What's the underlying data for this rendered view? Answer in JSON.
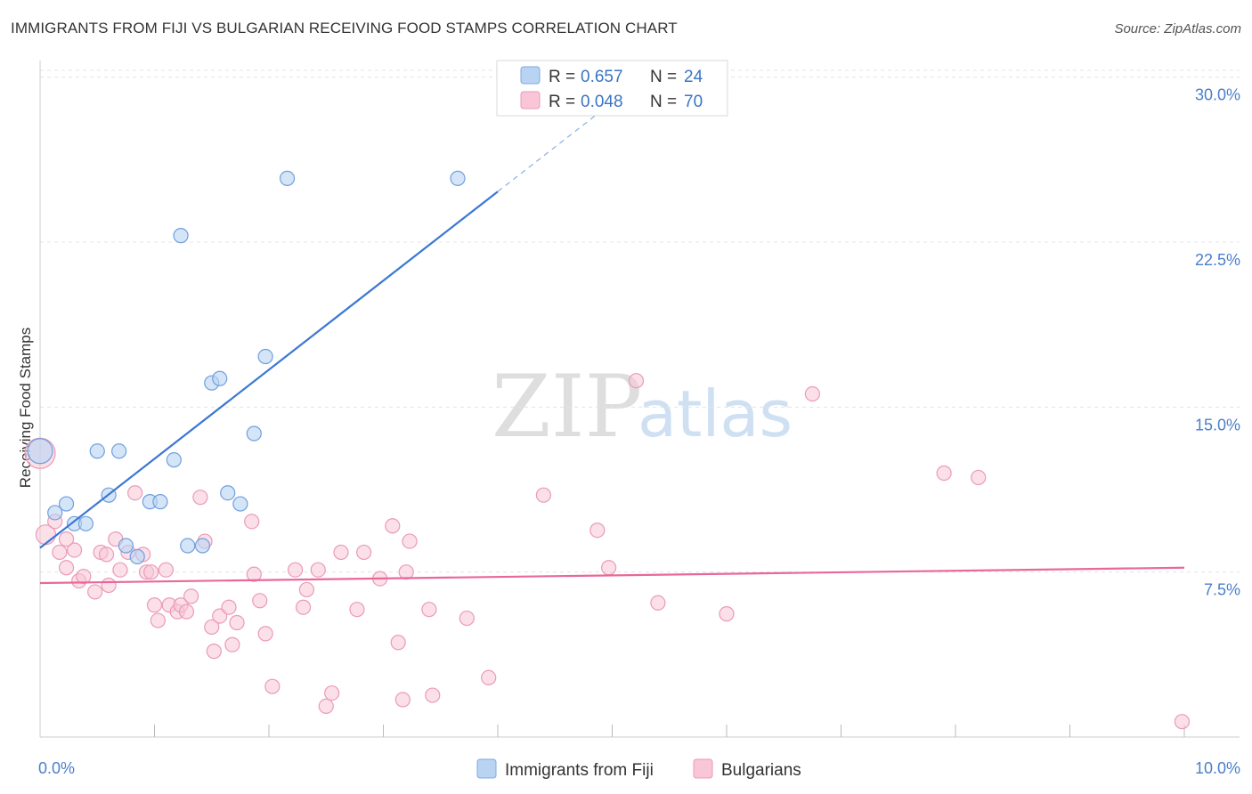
{
  "title": "IMMIGRANTS FROM FIJI VS BULGARIAN RECEIVING FOOD STAMPS CORRELATION CHART",
  "source": "Source: ZipAtlas.com",
  "watermark": {
    "zip": "ZIP",
    "atlas": "atlas"
  },
  "colors": {
    "fiji": "#3a78d2",
    "bulgarians": "#e8689a",
    "fiji_fill": "#b9d3f3",
    "bulgarians_fill": "#f8c6d6"
  },
  "legend": {
    "rows": [
      {
        "r_label": "R =",
        "r_value": "0.657",
        "n_label": "N =",
        "n_value": "24"
      },
      {
        "r_label": "R =",
        "r_value": "0.048",
        "n_label": "N =",
        "n_value": "70"
      }
    ]
  },
  "bottom_legend": {
    "fiji": "Immigrants from Fiji",
    "bulgarians": "Bulgarians"
  },
  "chart_data": {
    "type": "scatter",
    "title": "IMMIGRANTS FROM FIJI VS BULGARIAN RECEIVING FOOD STAMPS CORRELATION CHART",
    "xlabel": "",
    "ylabel": "Receiving Food Stamps",
    "xlim": [
      0,
      10
    ],
    "ylim": [
      0,
      31
    ],
    "x_tick_labels": [
      "0.0%",
      "10.0%"
    ],
    "y_ticks": [
      7.5,
      15.0,
      22.5,
      30.0
    ],
    "y_tick_labels": [
      "7.5%",
      "15.0%",
      "22.5%",
      "30.0%"
    ],
    "grid": true,
    "series": [
      {
        "name": "Immigrants from Fiji",
        "R": 0.657,
        "N": 24,
        "trend": {
          "x0": 0.0,
          "y0": 8.6,
          "x1": 4.0,
          "y1": 24.8,
          "dashed_to_x": 5.0
        },
        "points": [
          [
            0.0,
            13.0
          ],
          [
            0.13,
            10.2
          ],
          [
            0.23,
            10.6
          ],
          [
            0.3,
            9.7
          ],
          [
            0.4,
            9.7
          ],
          [
            0.6,
            11.0
          ],
          [
            0.5,
            13.0
          ],
          [
            0.69,
            13.0
          ],
          [
            0.75,
            8.7
          ],
          [
            0.85,
            8.2
          ],
          [
            0.96,
            10.7
          ],
          [
            1.05,
            10.7
          ],
          [
            1.17,
            12.6
          ],
          [
            1.23,
            22.8
          ],
          [
            1.29,
            8.7
          ],
          [
            1.42,
            8.7
          ],
          [
            1.5,
            16.1
          ],
          [
            1.57,
            16.3
          ],
          [
            1.64,
            11.1
          ],
          [
            1.75,
            10.6
          ],
          [
            1.87,
            13.8
          ],
          [
            1.97,
            17.3
          ],
          [
            2.16,
            25.4
          ],
          [
            3.65,
            25.4
          ]
        ]
      },
      {
        "name": "Bulgarians",
        "R": 0.048,
        "N": 70,
        "trend": {
          "x0": 0.0,
          "y0": 7.0,
          "x1": 10.0,
          "y1": 7.7
        },
        "points": [
          [
            0.0,
            12.9
          ],
          [
            0.05,
            9.2
          ],
          [
            0.13,
            9.8
          ],
          [
            0.17,
            8.4
          ],
          [
            0.23,
            7.7
          ],
          [
            0.3,
            8.5
          ],
          [
            0.34,
            7.1
          ],
          [
            0.38,
            7.3
          ],
          [
            0.48,
            6.6
          ],
          [
            0.53,
            8.4
          ],
          [
            0.58,
            8.3
          ],
          [
            0.6,
            6.9
          ],
          [
            0.66,
            9.0
          ],
          [
            0.7,
            7.6
          ],
          [
            0.77,
            8.4
          ],
          [
            0.83,
            11.1
          ],
          [
            0.9,
            8.3
          ],
          [
            0.93,
            7.5
          ],
          [
            0.97,
            7.5
          ],
          [
            1.0,
            6.0
          ],
          [
            1.03,
            5.3
          ],
          [
            1.1,
            7.6
          ],
          [
            1.13,
            6.0
          ],
          [
            1.2,
            5.7
          ],
          [
            1.23,
            6.0
          ],
          [
            1.28,
            5.7
          ],
          [
            1.32,
            6.4
          ],
          [
            1.4,
            10.9
          ],
          [
            1.44,
            8.9
          ],
          [
            1.5,
            5.0
          ],
          [
            1.52,
            3.9
          ],
          [
            1.57,
            5.5
          ],
          [
            1.65,
            5.9
          ],
          [
            1.68,
            4.2
          ],
          [
            1.72,
            5.2
          ],
          [
            1.85,
            9.8
          ],
          [
            1.87,
            7.4
          ],
          [
            1.92,
            6.2
          ],
          [
            1.97,
            4.7
          ],
          [
            2.03,
            2.3
          ],
          [
            2.23,
            7.6
          ],
          [
            2.3,
            5.9
          ],
          [
            2.33,
            6.7
          ],
          [
            2.43,
            7.6
          ],
          [
            2.5,
            1.4
          ],
          [
            2.55,
            2.0
          ],
          [
            2.63,
            8.4
          ],
          [
            2.77,
            5.8
          ],
          [
            2.83,
            8.4
          ],
          [
            2.97,
            7.2
          ],
          [
            3.08,
            9.6
          ],
          [
            3.13,
            4.3
          ],
          [
            3.17,
            1.7
          ],
          [
            3.2,
            7.5
          ],
          [
            3.23,
            8.9
          ],
          [
            3.4,
            5.8
          ],
          [
            3.43,
            1.9
          ],
          [
            3.73,
            5.4
          ],
          [
            3.92,
            2.7
          ],
          [
            4.4,
            11.0
          ],
          [
            5.21,
            16.2
          ],
          [
            4.87,
            9.4
          ],
          [
            4.97,
            7.7
          ],
          [
            5.4,
            6.1
          ],
          [
            6.0,
            5.6
          ],
          [
            6.75,
            15.6
          ],
          [
            7.9,
            12.0
          ],
          [
            8.2,
            11.8
          ],
          [
            9.98,
            0.7
          ],
          [
            0.23,
            9.0
          ]
        ]
      }
    ]
  }
}
